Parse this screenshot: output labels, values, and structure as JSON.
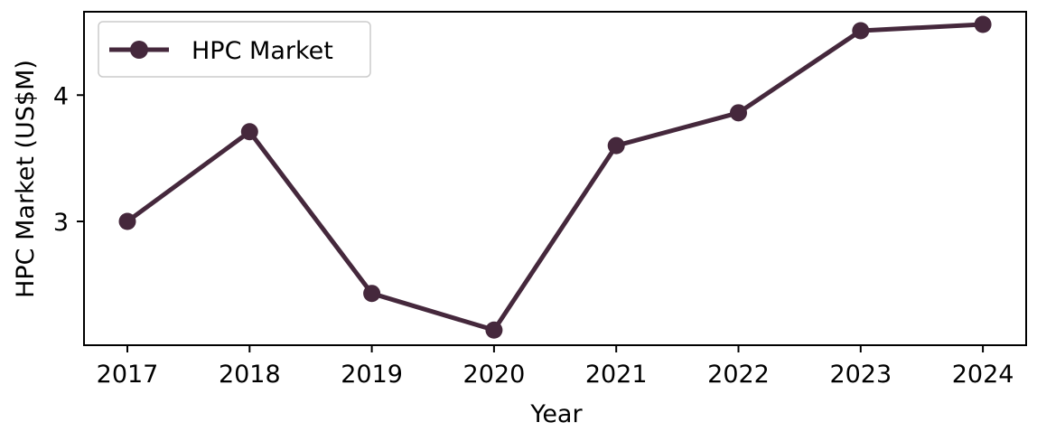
{
  "chart_data": {
    "type": "line",
    "title": "",
    "xlabel": "Year",
    "ylabel": "HPC Market (US$M)",
    "x": [
      "2017",
      "2018",
      "2019",
      "2020",
      "2021",
      "2022",
      "2023",
      "2024"
    ],
    "series": [
      {
        "name": "HPC Market",
        "values": [
          3.0,
          3.71,
          2.43,
          2.14,
          3.6,
          3.86,
          4.51,
          4.56
        ],
        "color": "#45283c",
        "marker": "circle"
      }
    ],
    "yticks": [
      3,
      4
    ],
    "ylim": [
      2.02,
      4.66
    ],
    "grid": false,
    "legend": "top-left"
  }
}
